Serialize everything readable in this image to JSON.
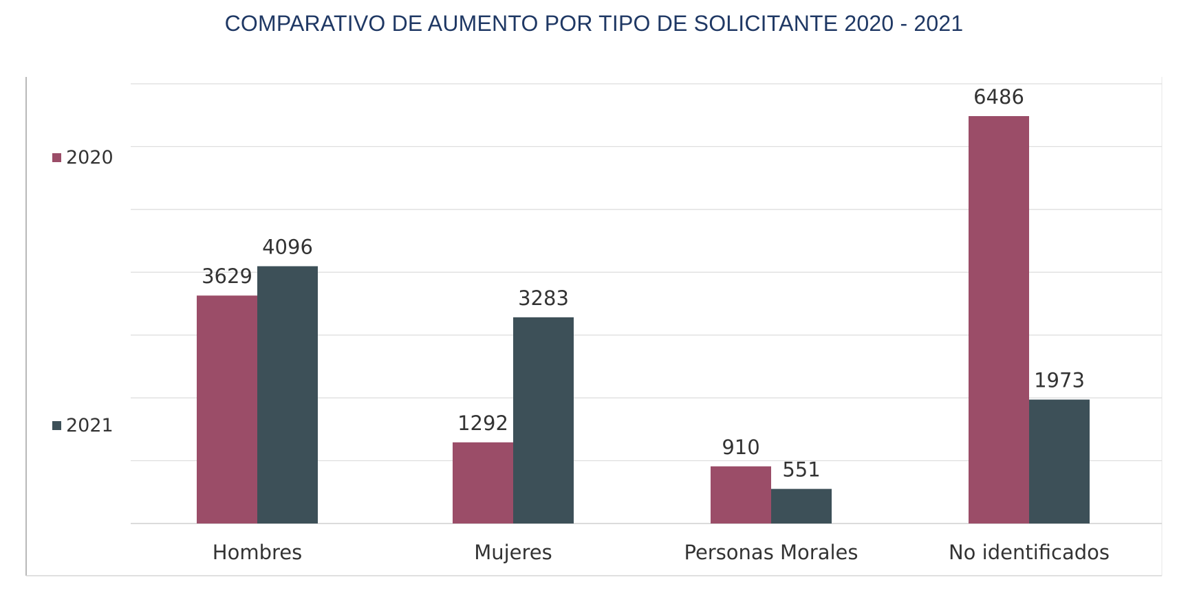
{
  "chart_data": {
    "type": "bar",
    "title": "COMPARATIVO DE AUMENTO POR TIPO DE SOLICITANTE 2020 - 2021",
    "categories": [
      "Hombres",
      "Mujeres",
      "Personas Morales",
      "No identificados"
    ],
    "series": [
      {
        "name": "2020",
        "values": [
          3629,
          1292,
          910,
          6486
        ],
        "color": "#9b4d68"
      },
      {
        "name": "2021",
        "values": [
          4096,
          3283,
          551,
          1973
        ],
        "color": "#3d5058"
      }
    ],
    "ylim": [
      0,
      7000
    ],
    "y_gridline_step": 1000,
    "grid": true,
    "legend_position": "left",
    "xlabel": "",
    "ylabel": ""
  }
}
